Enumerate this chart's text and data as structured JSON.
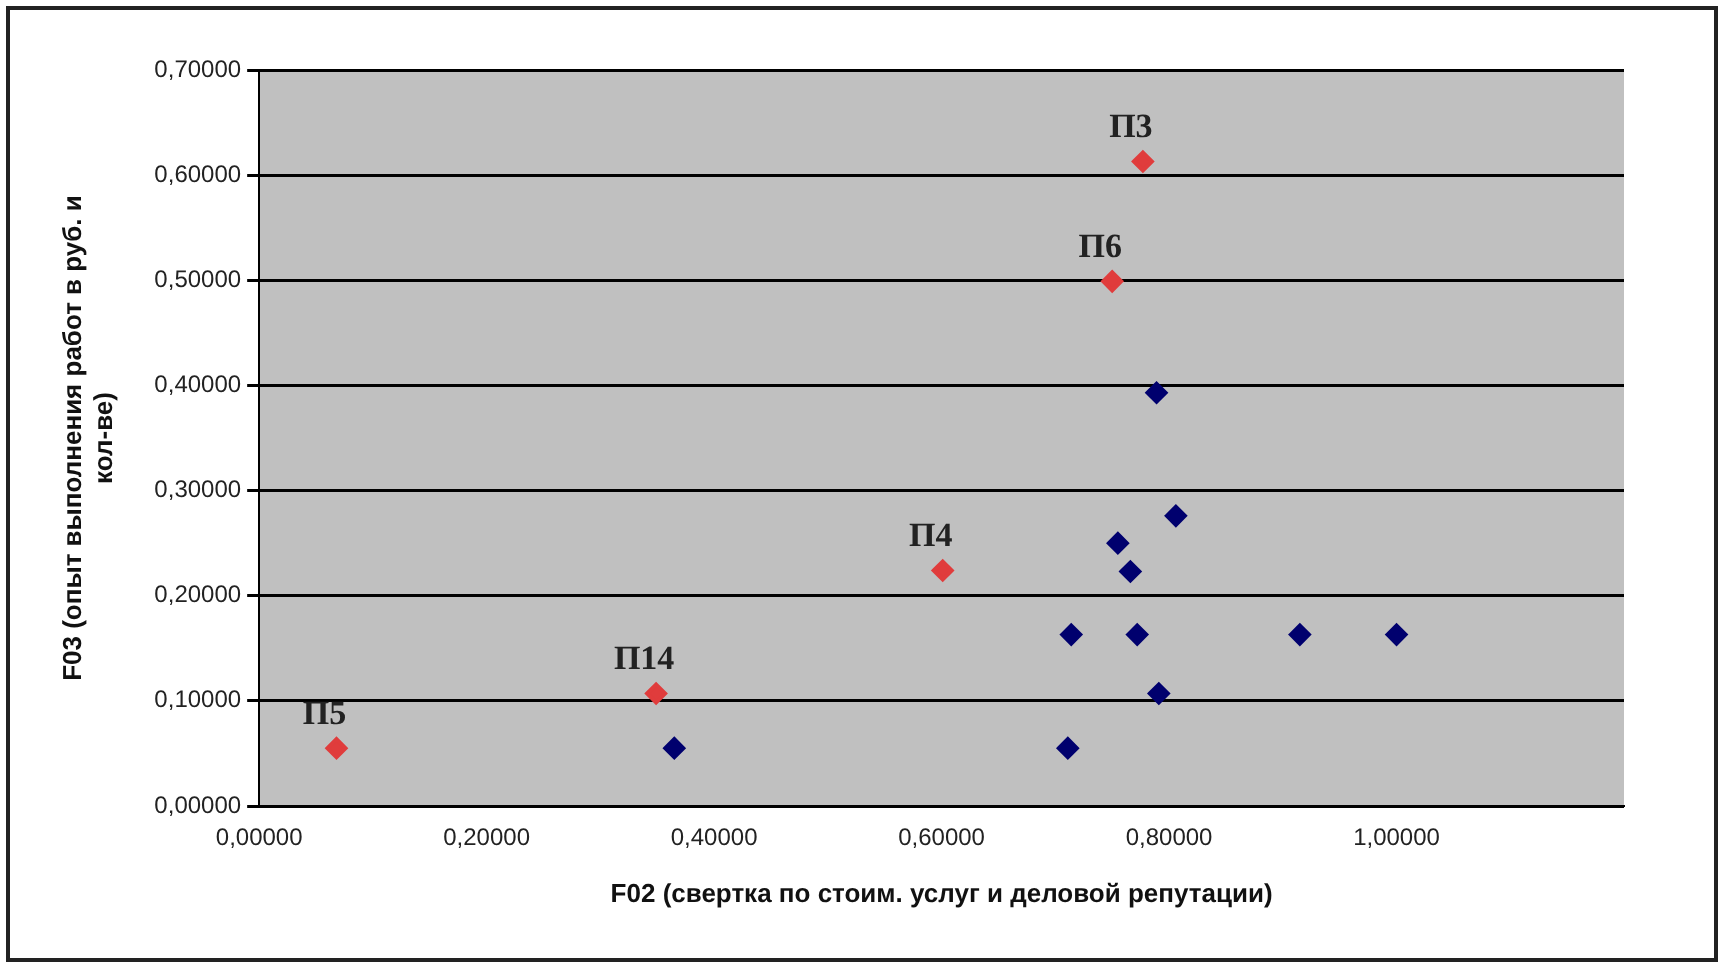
{
  "chart_data": {
    "type": "scatter",
    "xlabel": "F02 (свертка по стоим. услуг и деловой репутации)",
    "ylabel": "F03 (опыт выполнения работ в руб. и кол-ве)",
    "xlim": [
      0,
      1.2
    ],
    "xticks": [
      {
        "value": 0,
        "label": "0,00000"
      },
      {
        "value": 0.2,
        "label": "0,20000"
      },
      {
        "value": 0.4,
        "label": "0,40000"
      },
      {
        "value": 0.6,
        "label": "0,60000"
      },
      {
        "value": 0.8,
        "label": "0,80000"
      },
      {
        "value": 1.0,
        "label": "1,00000"
      }
    ],
    "ylim": [
      0,
      0.7
    ],
    "yticks": [
      {
        "value": 0,
        "label": "0,00000"
      },
      {
        "value": 0.1,
        "label": "0,10000"
      },
      {
        "value": 0.2,
        "label": "0,20000"
      },
      {
        "value": 0.3,
        "label": "0,30000"
      },
      {
        "value": 0.4,
        "label": "0,40000"
      },
      {
        "value": 0.5,
        "label": "0,50000"
      },
      {
        "value": 0.6,
        "label": "0,60000"
      },
      {
        "value": 0.7,
        "label": "0,70000"
      }
    ],
    "grid": "y",
    "legend": false,
    "marker": "diamond",
    "series": [
      {
        "color": "#00006e",
        "x": [
          0.789,
          0.365,
          0.711,
          0.714,
          0.755,
          0.766,
          0.772,
          0.791,
          0.806,
          0.915,
          1.0
        ],
        "values": [
          0.393,
          0.055,
          0.055,
          0.163,
          0.25,
          0.223,
          0.163,
          0.107,
          0.276,
          0.163,
          0.163
        ]
      },
      {
        "color": "#e03c3c",
        "x": [
          0.068,
          0.349,
          0.601,
          0.75,
          0.777
        ],
        "values": [
          0.055,
          0.107,
          0.224,
          0.499,
          0.613
        ]
      }
    ],
    "annotations": [
      {
        "text": "П5",
        "x": 0.068,
        "y": 0.055
      },
      {
        "text": "П14",
        "x": 0.349,
        "y": 0.107
      },
      {
        "text": "П4",
        "x": 0.601,
        "y": 0.224
      },
      {
        "text": "П6",
        "x": 0.75,
        "y": 0.499
      },
      {
        "text": "П3",
        "x": 0.777,
        "y": 0.613
      }
    ]
  }
}
